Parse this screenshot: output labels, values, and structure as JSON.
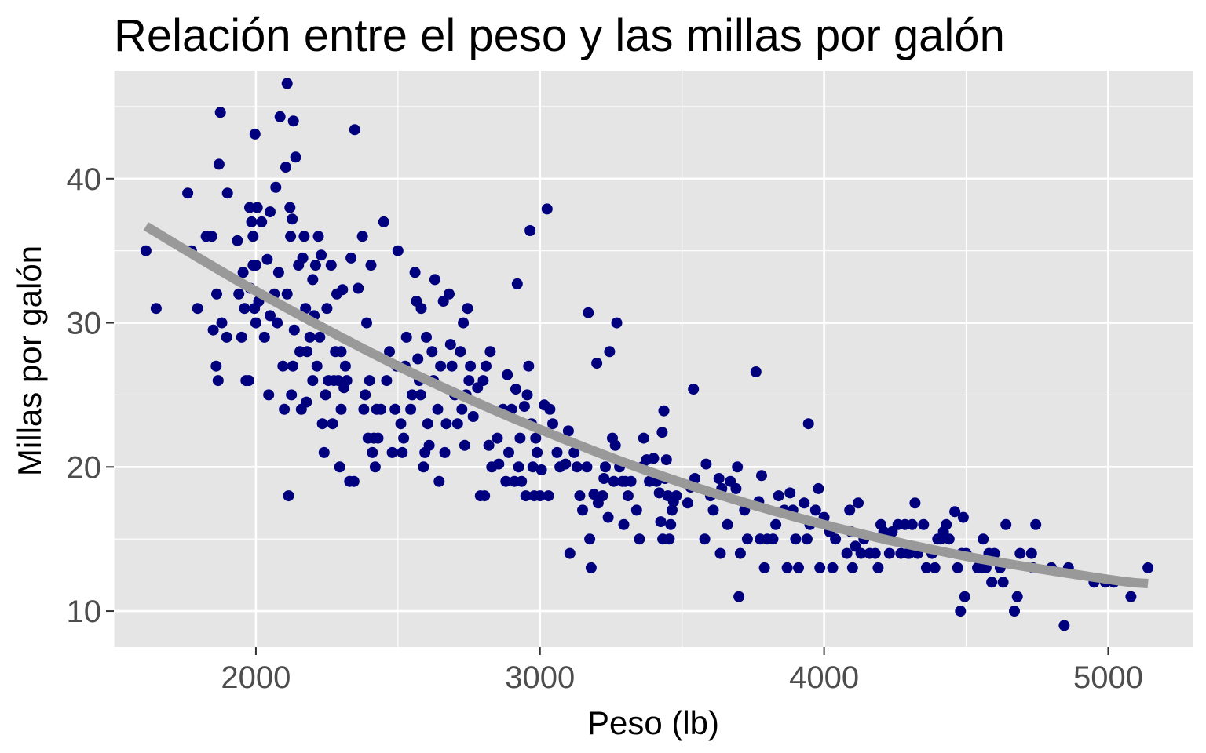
{
  "chart_data": {
    "type": "scatter",
    "title": "Relación entre el peso y las millas por galón",
    "xlabel": "Peso (lb)",
    "ylabel": "Millas por galón",
    "xlim": [
      1500,
      5300
    ],
    "ylim": [
      7.5,
      47.5
    ],
    "x_ticks": [
      2000,
      3000,
      4000,
      5000
    ],
    "y_ticks": [
      10,
      20,
      30,
      40
    ],
    "x_minor": [
      1500,
      2500,
      3500,
      4500
    ],
    "y_minor": [
      15,
      25,
      35,
      45
    ],
    "grid": true,
    "colors": {
      "panel": "#e5e5e5",
      "grid": "#ffffff",
      "points": "#00007f",
      "trend": "#999999",
      "tick_text": "#4d4d4d",
      "tick_mark": "#333333"
    },
    "trend": {
      "x": [
        1613,
        2000,
        2500,
        3000,
        3500,
        4000,
        4500,
        5000,
        5140
      ],
      "y": [
        36.7,
        32.2,
        27.0,
        22.6,
        18.9,
        16.0,
        13.8,
        12.2,
        11.9
      ]
    },
    "points": [
      [
        1613,
        35
      ],
      [
        1649,
        31
      ],
      [
        1760,
        39
      ],
      [
        1773,
        35
      ],
      [
        1795,
        31
      ],
      [
        1825,
        36
      ],
      [
        1845,
        36
      ],
      [
        1850,
        29.5
      ],
      [
        1860,
        27
      ],
      [
        1862,
        32
      ],
      [
        1867,
        26
      ],
      [
        1870,
        41
      ],
      [
        1875,
        44.6
      ],
      [
        1880,
        30
      ],
      [
        1897,
        29
      ],
      [
        1900,
        39
      ],
      [
        1935,
        35.7
      ],
      [
        1940,
        32
      ],
      [
        1950,
        29
      ],
      [
        1955,
        33.5
      ],
      [
        1960,
        31
      ],
      [
        1965,
        26
      ],
      [
        1975,
        26
      ],
      [
        1978,
        38
      ],
      [
        1980,
        32.4
      ],
      [
        1985,
        37
      ],
      [
        1990,
        34
      ],
      [
        1990,
        36
      ],
      [
        1995,
        31
      ],
      [
        1997,
        43.1
      ],
      [
        2000,
        34
      ],
      [
        2000,
        30
      ],
      [
        2005,
        38
      ],
      [
        2010,
        31.5
      ],
      [
        2020,
        37
      ],
      [
        2030,
        29
      ],
      [
        2040,
        34.4
      ],
      [
        2045,
        25
      ],
      [
        2050,
        30.5
      ],
      [
        2050,
        37.7
      ],
      [
        2065,
        32
      ],
      [
        2070,
        39.4
      ],
      [
        2075,
        30
      ],
      [
        2080,
        33.5
      ],
      [
        2085,
        44.3
      ],
      [
        2095,
        27
      ],
      [
        2100,
        24
      ],
      [
        2105,
        40.8
      ],
      [
        2110,
        32
      ],
      [
        2110,
        46.6
      ],
      [
        2115,
        18
      ],
      [
        2120,
        38
      ],
      [
        2122,
        36
      ],
      [
        2125,
        25
      ],
      [
        2128,
        37.2
      ],
      [
        2130,
        27
      ],
      [
        2132,
        44
      ],
      [
        2135,
        29.5
      ],
      [
        2140,
        41.5
      ],
      [
        2150,
        34
      ],
      [
        2155,
        28
      ],
      [
        2160,
        24
      ],
      [
        2165,
        34.5
      ],
      [
        2170,
        36
      ],
      [
        2175,
        31
      ],
      [
        2178,
        24.5
      ],
      [
        2180,
        28
      ],
      [
        2190,
        29
      ],
      [
        2200,
        26
      ],
      [
        2200,
        33
      ],
      [
        2205,
        30.5
      ],
      [
        2210,
        34
      ],
      [
        2215,
        27
      ],
      [
        2220,
        36
      ],
      [
        2225,
        29
      ],
      [
        2230,
        34.7
      ],
      [
        2234,
        23
      ],
      [
        2240,
        21
      ],
      [
        2245,
        25
      ],
      [
        2250,
        31
      ],
      [
        2255,
        26
      ],
      [
        2265,
        34
      ],
      [
        2270,
        23
      ],
      [
        2275,
        26
      ],
      [
        2280,
        28
      ],
      [
        2285,
        32
      ],
      [
        2290,
        26
      ],
      [
        2295,
        20
      ],
      [
        2300,
        28
      ],
      [
        2300,
        24
      ],
      [
        2305,
        32.3
      ],
      [
        2310,
        25.5
      ],
      [
        2315,
        27
      ],
      [
        2320,
        26
      ],
      [
        2330,
        19
      ],
      [
        2335,
        34.5
      ],
      [
        2345,
        19
      ],
      [
        2348,
        43.4
      ],
      [
        2360,
        32.4
      ],
      [
        2375,
        36
      ],
      [
        2380,
        24
      ],
      [
        2385,
        25
      ],
      [
        2390,
        30
      ],
      [
        2395,
        22
      ],
      [
        2400,
        26
      ],
      [
        2405,
        34
      ],
      [
        2410,
        21
      ],
      [
        2415,
        22
      ],
      [
        2420,
        20
      ],
      [
        2425,
        24
      ],
      [
        2430,
        22
      ],
      [
        2440,
        24
      ],
      [
        2450,
        37
      ],
      [
        2460,
        26
      ],
      [
        2470,
        28
      ],
      [
        2480,
        21
      ],
      [
        2490,
        24
      ],
      [
        2495,
        27
      ],
      [
        2500,
        35
      ],
      [
        2510,
        23
      ],
      [
        2515,
        21
      ],
      [
        2520,
        22
      ],
      [
        2525,
        27
      ],
      [
        2530,
        29
      ],
      [
        2545,
        24
      ],
      [
        2550,
        25
      ],
      [
        2560,
        33.5
      ],
      [
        2565,
        31.5
      ],
      [
        2570,
        27.5
      ],
      [
        2575,
        26
      ],
      [
        2580,
        25
      ],
      [
        2582,
        31
      ],
      [
        2590,
        20
      ],
      [
        2595,
        21
      ],
      [
        2600,
        29
      ],
      [
        2605,
        23
      ],
      [
        2610,
        21.5
      ],
      [
        2620,
        28
      ],
      [
        2625,
        26
      ],
      [
        2630,
        33
      ],
      [
        2640,
        24
      ],
      [
        2645,
        19
      ],
      [
        2650,
        27
      ],
      [
        2660,
        31.5
      ],
      [
        2665,
        21
      ],
      [
        2670,
        23
      ],
      [
        2680,
        32
      ],
      [
        2685,
        28.5
      ],
      [
        2690,
        27
      ],
      [
        2700,
        25
      ],
      [
        2710,
        23
      ],
      [
        2720,
        28
      ],
      [
        2725,
        24
      ],
      [
        2730,
        30
      ],
      [
        2735,
        21.5
      ],
      [
        2740,
        25
      ],
      [
        2745,
        31
      ],
      [
        2750,
        26
      ],
      [
        2755,
        27
      ],
      [
        2765,
        23.5
      ],
      [
        2780,
        25.5
      ],
      [
        2790,
        18
      ],
      [
        2800,
        26
      ],
      [
        2805,
        18
      ],
      [
        2810,
        27
      ],
      [
        2820,
        21.5
      ],
      [
        2825,
        28
      ],
      [
        2830,
        20
      ],
      [
        2850,
        22
      ],
      [
        2855,
        20.2
      ],
      [
        2870,
        24
      ],
      [
        2880,
        19
      ],
      [
        2885,
        26.4
      ],
      [
        2890,
        21
      ],
      [
        2900,
        24
      ],
      [
        2910,
        19
      ],
      [
        2915,
        25.4
      ],
      [
        2920,
        32.7
      ],
      [
        2925,
        20
      ],
      [
        2930,
        22
      ],
      [
        2935,
        19
      ],
      [
        2945,
        24.2
      ],
      [
        2950,
        18
      ],
      [
        2955,
        25
      ],
      [
        2960,
        27
      ],
      [
        2965,
        36.4
      ],
      [
        2970,
        23
      ],
      [
        2975,
        20
      ],
      [
        2980,
        18
      ],
      [
        2985,
        22
      ],
      [
        2990,
        21
      ],
      [
        3000,
        18
      ],
      [
        3005,
        19.8
      ],
      [
        3015,
        24.3
      ],
      [
        3025,
        37.9
      ],
      [
        3030,
        18
      ],
      [
        3035,
        24
      ],
      [
        3045,
        23
      ],
      [
        3060,
        21
      ],
      [
        3070,
        20
      ],
      [
        3090,
        20.2
      ],
      [
        3100,
        22.5
      ],
      [
        3105,
        14
      ],
      [
        3120,
        21
      ],
      [
        3130,
        20
      ],
      [
        3140,
        18
      ],
      [
        3150,
        17
      ],
      [
        3165,
        20
      ],
      [
        3170,
        30.7
      ],
      [
        3175,
        15
      ],
      [
        3180,
        13
      ],
      [
        3190,
        18.1
      ],
      [
        3200,
        27.2
      ],
      [
        3205,
        17.5
      ],
      [
        3220,
        18
      ],
      [
        3225,
        19.2
      ],
      [
        3230,
        20
      ],
      [
        3240,
        16.5
      ],
      [
        3245,
        28
      ],
      [
        3255,
        22
      ],
      [
        3260,
        19
      ],
      [
        3265,
        21.5
      ],
      [
        3270,
        30
      ],
      [
        3280,
        20
      ],
      [
        3290,
        19
      ],
      [
        3295,
        16
      ],
      [
        3300,
        19
      ],
      [
        3310,
        18
      ],
      [
        3320,
        19
      ],
      [
        3340,
        17
      ],
      [
        3350,
        15
      ],
      [
        3360,
        20
      ],
      [
        3365,
        22
      ],
      [
        3375,
        20.5
      ],
      [
        3385,
        19
      ],
      [
        3400,
        20.6
      ],
      [
        3410,
        19
      ],
      [
        3420,
        18.2
      ],
      [
        3425,
        16.2
      ],
      [
        3430,
        22.4
      ],
      [
        3432,
        15
      ],
      [
        3436,
        23.9
      ],
      [
        3440,
        19.2
      ],
      [
        3445,
        20.5
      ],
      [
        3450,
        18
      ],
      [
        3455,
        15
      ],
      [
        3460,
        16
      ],
      [
        3465,
        17
      ],
      [
        3470,
        17.6
      ],
      [
        3480,
        18
      ],
      [
        3520,
        17.5
      ],
      [
        3530,
        18.6
      ],
      [
        3540,
        25.4
      ],
      [
        3545,
        19.2
      ],
      [
        3580,
        15
      ],
      [
        3585,
        20.2
      ],
      [
        3600,
        18
      ],
      [
        3610,
        17
      ],
      [
        3630,
        19.2
      ],
      [
        3635,
        14
      ],
      [
        3640,
        18.5
      ],
      [
        3660,
        16
      ],
      [
        3670,
        19
      ],
      [
        3690,
        18.5
      ],
      [
        3695,
        20
      ],
      [
        3700,
        11
      ],
      [
        3705,
        14
      ],
      [
        3720,
        17
      ],
      [
        3730,
        15
      ],
      [
        3760,
        26.6
      ],
      [
        3770,
        17.6
      ],
      [
        3775,
        15
      ],
      [
        3780,
        19.4
      ],
      [
        3790,
        13
      ],
      [
        3800,
        15
      ],
      [
        3820,
        15
      ],
      [
        3830,
        16
      ],
      [
        3840,
        18
      ],
      [
        3860,
        17
      ],
      [
        3870,
        13
      ],
      [
        3880,
        18.2
      ],
      [
        3890,
        17
      ],
      [
        3900,
        15
      ],
      [
        3910,
        13
      ],
      [
        3930,
        17.5
      ],
      [
        3940,
        15
      ],
      [
        3945,
        23
      ],
      [
        3950,
        16
      ],
      [
        3970,
        17
      ],
      [
        3980,
        18.5
      ],
      [
        3985,
        13
      ],
      [
        4000,
        16.5
      ],
      [
        4020,
        15.5
      ],
      [
        4030,
        13
      ],
      [
        4040,
        15
      ],
      [
        4080,
        14
      ],
      [
        4090,
        17
      ],
      [
        4095,
        15.5
      ],
      [
        4100,
        13
      ],
      [
        4110,
        14.5
      ],
      [
        4120,
        17.5
      ],
      [
        4130,
        14
      ],
      [
        4140,
        15
      ],
      [
        4160,
        14
      ],
      [
        4180,
        14
      ],
      [
        4190,
        13
      ],
      [
        4200,
        16
      ],
      [
        4210,
        15.5
      ],
      [
        4220,
        15
      ],
      [
        4230,
        14
      ],
      [
        4240,
        15.5
      ],
      [
        4260,
        16
      ],
      [
        4270,
        14
      ],
      [
        4285,
        16
      ],
      [
        4295,
        14
      ],
      [
        4300,
        14
      ],
      [
        4310,
        16
      ],
      [
        4320,
        17.5
      ],
      [
        4330,
        14
      ],
      [
        4350,
        16
      ],
      [
        4360,
        13
      ],
      [
        4380,
        14
      ],
      [
        4390,
        13
      ],
      [
        4400,
        15
      ],
      [
        4410,
        15
      ],
      [
        4420,
        15.5
      ],
      [
        4430,
        16
      ],
      [
        4440,
        15
      ],
      [
        4460,
        16.9
      ],
      [
        4470,
        13
      ],
      [
        4480,
        10
      ],
      [
        4485,
        14
      ],
      [
        4490,
        16.5
      ],
      [
        4495,
        11
      ],
      [
        4500,
        14
      ],
      [
        4540,
        13
      ],
      [
        4550,
        13
      ],
      [
        4560,
        15
      ],
      [
        4570,
        13
      ],
      [
        4580,
        14
      ],
      [
        4590,
        12
      ],
      [
        4600,
        14
      ],
      [
        4620,
        13
      ],
      [
        4630,
        12
      ],
      [
        4640,
        16
      ],
      [
        4670,
        10
      ],
      [
        4680,
        11
      ],
      [
        4690,
        14
      ],
      [
        4730,
        14
      ],
      [
        4735,
        13
      ],
      [
        4745,
        16
      ],
      [
        4800,
        13
      ],
      [
        4845,
        9
      ],
      [
        4860,
        13
      ],
      [
        4950,
        12
      ],
      [
        4990,
        12
      ],
      [
        5020,
        12
      ],
      [
        5080,
        11
      ],
      [
        5140,
        13
      ]
    ]
  }
}
